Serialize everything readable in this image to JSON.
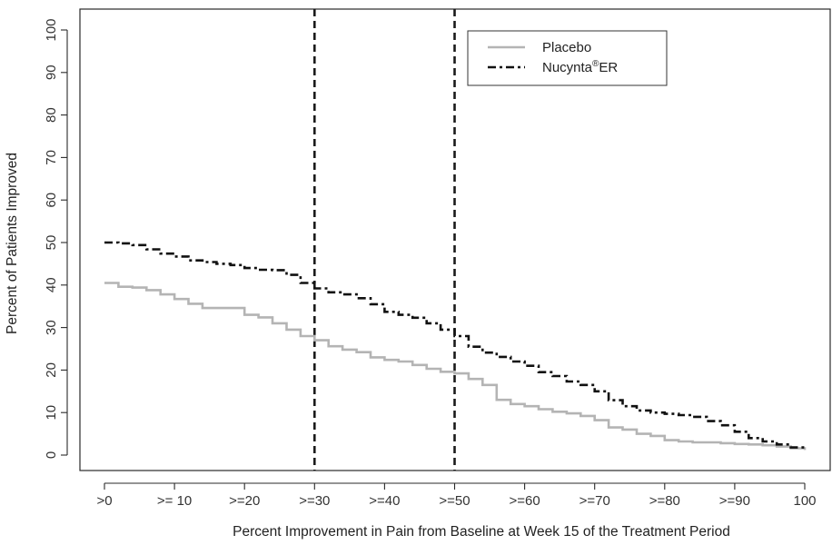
{
  "chart_data": {
    "type": "line",
    "title": "",
    "xlabel": "Percent Improvement in Pain from Baseline at Week 15 of the Treatment Period",
    "ylabel": "Percent of Patients Improved",
    "xlim": [
      0,
      100
    ],
    "ylim": [
      0,
      100
    ],
    "x_tick_values": [
      0,
      10,
      20,
      30,
      40,
      50,
      60,
      70,
      80,
      90,
      100
    ],
    "x_tick_labels": [
      ">0",
      ">= 10",
      ">=20",
      ">=30",
      ">=40",
      ">=50",
      ">=60",
      ">=70",
      ">=80",
      ">=90",
      "100"
    ],
    "y_tick_values": [
      0,
      10,
      20,
      30,
      40,
      50,
      60,
      70,
      80,
      90,
      100
    ],
    "y_tick_labels": [
      "0",
      "10",
      "20",
      "30",
      "40",
      "50",
      "60",
      "70",
      "80",
      "90",
      "100"
    ],
    "reference_lines_x": [
      30,
      50
    ],
    "grid": false,
    "legend_position": "top-right",
    "legend": {
      "placebo": "Placebo",
      "nucynta_base": "Nucynta",
      "nucynta_sup": "®",
      "nucynta_tail": "ER"
    },
    "series": [
      {
        "name": "Placebo",
        "color": "#b4b4b4",
        "style": "solid",
        "points": [
          [
            0,
            40.5
          ],
          [
            2,
            39.6
          ],
          [
            4,
            39.4
          ],
          [
            6,
            38.8
          ],
          [
            8,
            37.8
          ],
          [
            10,
            36.7
          ],
          [
            12,
            35.6
          ],
          [
            14,
            34.6
          ],
          [
            16,
            34.6
          ],
          [
            18,
            34.6
          ],
          [
            20,
            33.0
          ],
          [
            22,
            32.4
          ],
          [
            24,
            31.0
          ],
          [
            26,
            29.5
          ],
          [
            28,
            28.0
          ],
          [
            30,
            27.0
          ],
          [
            32,
            25.6
          ],
          [
            34,
            24.8
          ],
          [
            36,
            24.2
          ],
          [
            38,
            23.0
          ],
          [
            40,
            22.4
          ],
          [
            42,
            22.0
          ],
          [
            44,
            21.2
          ],
          [
            46,
            20.3
          ],
          [
            48,
            19.6
          ],
          [
            50,
            19.2
          ],
          [
            52,
            17.9
          ],
          [
            54,
            16.5
          ],
          [
            56,
            13.0
          ],
          [
            58,
            12.0
          ],
          [
            60,
            11.5
          ],
          [
            62,
            10.8
          ],
          [
            64,
            10.2
          ],
          [
            66,
            9.8
          ],
          [
            68,
            9.2
          ],
          [
            70,
            8.2
          ],
          [
            72,
            6.5
          ],
          [
            74,
            6.0
          ],
          [
            76,
            5.0
          ],
          [
            78,
            4.5
          ],
          [
            80,
            3.5
          ],
          [
            82,
            3.2
          ],
          [
            84,
            3.0
          ],
          [
            86,
            3.0
          ],
          [
            88,
            2.8
          ],
          [
            90,
            2.6
          ],
          [
            92,
            2.5
          ],
          [
            94,
            2.3
          ],
          [
            96,
            2.0
          ],
          [
            98,
            1.6
          ],
          [
            100,
            1.2
          ]
        ]
      },
      {
        "name": "Nucynta®ER",
        "color": "#111111",
        "style": "dash-dot",
        "points": [
          [
            0,
            50.0
          ],
          [
            2,
            49.8
          ],
          [
            4,
            49.4
          ],
          [
            6,
            48.4
          ],
          [
            8,
            47.4
          ],
          [
            10,
            46.7
          ],
          [
            12,
            45.8
          ],
          [
            14,
            45.4
          ],
          [
            16,
            45.0
          ],
          [
            18,
            44.7
          ],
          [
            20,
            44.0
          ],
          [
            22,
            43.6
          ],
          [
            24,
            43.5
          ],
          [
            26,
            42.4
          ],
          [
            28,
            40.5
          ],
          [
            30,
            39.2
          ],
          [
            32,
            38.3
          ],
          [
            34,
            37.8
          ],
          [
            36,
            36.9
          ],
          [
            38,
            35.5
          ],
          [
            40,
            33.7
          ],
          [
            42,
            33.0
          ],
          [
            44,
            32.3
          ],
          [
            46,
            31.0
          ],
          [
            48,
            29.5
          ],
          [
            50,
            28.0
          ],
          [
            52,
            25.5
          ],
          [
            54,
            24.1
          ],
          [
            56,
            23.1
          ],
          [
            58,
            22.0
          ],
          [
            60,
            21.0
          ],
          [
            62,
            19.5
          ],
          [
            64,
            18.6
          ],
          [
            66,
            17.3
          ],
          [
            68,
            16.5
          ],
          [
            70,
            15.0
          ],
          [
            72,
            12.9
          ],
          [
            74,
            11.5
          ],
          [
            76,
            10.5
          ],
          [
            78,
            10.0
          ],
          [
            80,
            9.7
          ],
          [
            82,
            9.4
          ],
          [
            84,
            9.0
          ],
          [
            86,
            8.0
          ],
          [
            88,
            7.0
          ],
          [
            90,
            5.5
          ],
          [
            92,
            4.0
          ],
          [
            94,
            3.2
          ],
          [
            96,
            2.5
          ],
          [
            98,
            1.8
          ],
          [
            100,
            1.2
          ]
        ]
      }
    ]
  }
}
